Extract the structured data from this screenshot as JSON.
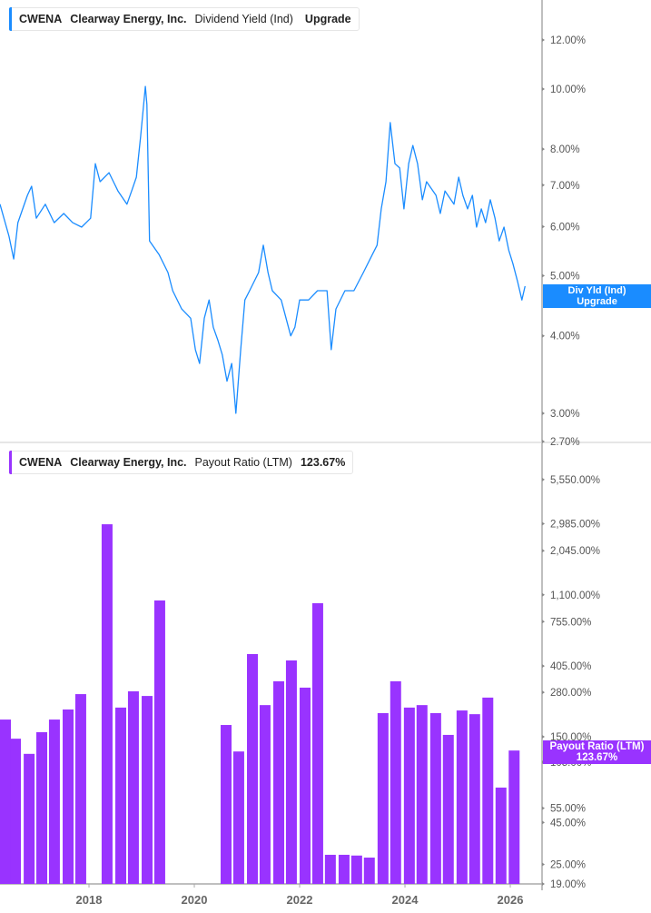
{
  "colors": {
    "yield": "#1a8cff",
    "payout": "#9933ff",
    "axis": "#aaaaaa"
  },
  "top_header": {
    "ticker": "CWENA",
    "company": "Clearway Energy, Inc.",
    "metric": "Dividend Yield (Ind)",
    "value": "Upgrade"
  },
  "top_flag": {
    "line1": "Div Yld (Ind)",
    "line2": "Upgrade"
  },
  "bottom_header": {
    "ticker": "CWENA",
    "company": "Clearway Energy, Inc.",
    "metric": "Payout Ratio (LTM)",
    "value": "123.67%"
  },
  "bottom_flag": {
    "line1": "Payout Ratio (LTM)",
    "line2": "123.67%"
  },
  "chart_data": [
    {
      "type": "line",
      "title": "Dividend Yield (Ind)",
      "scale": "log",
      "ylim": [
        2.7,
        13.5
      ],
      "yticks": [
        {
          "v": 12,
          "label": "12.00%"
        },
        {
          "v": 10,
          "label": "10.00%"
        },
        {
          "v": 8,
          "label": "8.00%"
        },
        {
          "v": 7,
          "label": "7.00%"
        },
        {
          "v": 6,
          "label": "6.00%"
        },
        {
          "v": 5,
          "label": "5.00%"
        },
        {
          "v": 4,
          "label": "4.00%"
        },
        {
          "v": 3,
          "label": "3.00%"
        },
        {
          "v": 2.7,
          "label": "2.70%"
        }
      ],
      "x": [
        2016.31,
        2016.48,
        2016.57,
        2016.65,
        2016.83,
        2016.91,
        2017.0,
        2017.17,
        2017.34,
        2017.52,
        2017.69,
        2017.86,
        2018.03,
        2018.12,
        2018.21,
        2018.38,
        2018.55,
        2018.72,
        2018.81,
        2018.9,
        2018.98,
        2019.07,
        2019.1,
        2019.15,
        2019.33,
        2019.5,
        2019.59,
        2019.76,
        2019.93,
        2020.02,
        2020.1,
        2020.19,
        2020.28,
        2020.36,
        2020.45,
        2020.53,
        2020.62,
        2020.71,
        2020.79,
        2020.88,
        2020.96,
        2021.05,
        2021.22,
        2021.31,
        2021.4,
        2021.48,
        2021.65,
        2021.83,
        2021.91,
        2022.0,
        2022.17,
        2022.34,
        2022.52,
        2022.6,
        2022.69,
        2022.86,
        2023.03,
        2023.21,
        2023.38,
        2023.47,
        2023.55,
        2023.64,
        2023.72,
        2023.81,
        2023.9,
        2023.98,
        2024.07,
        2024.15,
        2024.24,
        2024.33,
        2024.41,
        2024.59,
        2024.67,
        2024.76,
        2024.93,
        2025.02,
        2025.1,
        2025.19,
        2025.28,
        2025.36,
        2025.45,
        2025.53,
        2025.62,
        2025.71,
        2025.79,
        2025.88,
        2025.97,
        2026.05,
        2026.14,
        2026.22,
        2026.28
      ],
      "y": [
        6.52,
        5.79,
        5.32,
        6.09,
        6.74,
        6.97,
        6.19,
        6.52,
        6.09,
        6.3,
        6.09,
        5.99,
        6.19,
        7.58,
        7.09,
        7.33,
        6.85,
        6.52,
        6.85,
        7.21,
        8.39,
        10.1,
        9.44,
        5.69,
        5.41,
        5.06,
        4.73,
        4.42,
        4.27,
        3.8,
        3.61,
        4.27,
        4.57,
        4.13,
        3.93,
        3.73,
        3.38,
        3.61,
        3.0,
        3.8,
        4.57,
        4.73,
        5.06,
        5.6,
        5.06,
        4.73,
        4.57,
        4.0,
        4.13,
        4.57,
        4.57,
        4.73,
        4.73,
        3.8,
        4.42,
        4.73,
        4.73,
        5.06,
        5.41,
        5.6,
        6.41,
        7.09,
        8.83,
        7.58,
        7.46,
        6.41,
        7.58,
        8.11,
        7.58,
        6.63,
        7.09,
        6.74,
        6.3,
        6.85,
        6.52,
        7.21,
        6.74,
        6.41,
        6.74,
        5.99,
        6.41,
        6.09,
        6.63,
        6.19,
        5.69,
        5.99,
        5.5,
        5.23,
        4.89,
        4.57,
        4.81
      ]
    },
    {
      "type": "bar",
      "title": "Payout Ratio (LTM)",
      "scale": "log",
      "ylim": [
        19,
        5550
      ],
      "yticks": [
        {
          "v": 5550,
          "label": "5,550.00%"
        },
        {
          "v": 2985,
          "label": "2,985.00%"
        },
        {
          "v": 2045,
          "label": "2,045.00%"
        },
        {
          "v": 1100,
          "label": "1,100.00%"
        },
        {
          "v": 755,
          "label": "755.00%"
        },
        {
          "v": 405,
          "label": "405.00%"
        },
        {
          "v": 280,
          "label": "280.00%"
        },
        {
          "v": 150,
          "label": "150.00%"
        },
        {
          "v": 105,
          "label": "105.00%"
        },
        {
          "v": 55,
          "label": "55.00%"
        },
        {
          "v": 45,
          "label": "45.00%"
        },
        {
          "v": 25,
          "label": "25.00%"
        },
        {
          "v": 19,
          "label": "19.00%"
        }
      ],
      "xticks": [
        {
          "v": 2018,
          "label": "2018"
        },
        {
          "v": 2020,
          "label": "2020"
        },
        {
          "v": 2022,
          "label": "2022"
        },
        {
          "v": 2024,
          "label": "2024"
        },
        {
          "v": 2026,
          "label": "2026"
        }
      ],
      "x": [
        2016.31,
        2016.5,
        2016.76,
        2017.0,
        2017.24,
        2017.5,
        2017.74,
        2018.24,
        2018.5,
        2018.74,
        2019.0,
        2019.24,
        2020.5,
        2020.74,
        2021.0,
        2021.24,
        2021.5,
        2021.74,
        2022.0,
        2022.24,
        2022.48,
        2022.74,
        2022.98,
        2023.22,
        2023.48,
        2023.72,
        2023.98,
        2024.22,
        2024.48,
        2024.72,
        2024.98,
        2025.22,
        2025.47,
        2025.72,
        2025.97
      ],
      "values": [
        191,
        146,
        118,
        160,
        191,
        220,
        273,
        2964,
        226,
        284,
        266,
        1017,
        177,
        122,
        479,
        234,
        327,
        438,
        299,
        978,
        28.6,
        28.6,
        28.3,
        27.5,
        209,
        327,
        226,
        234,
        209,
        154,
        217,
        206,
        260,
        73.5,
        123.67
      ]
    }
  ]
}
